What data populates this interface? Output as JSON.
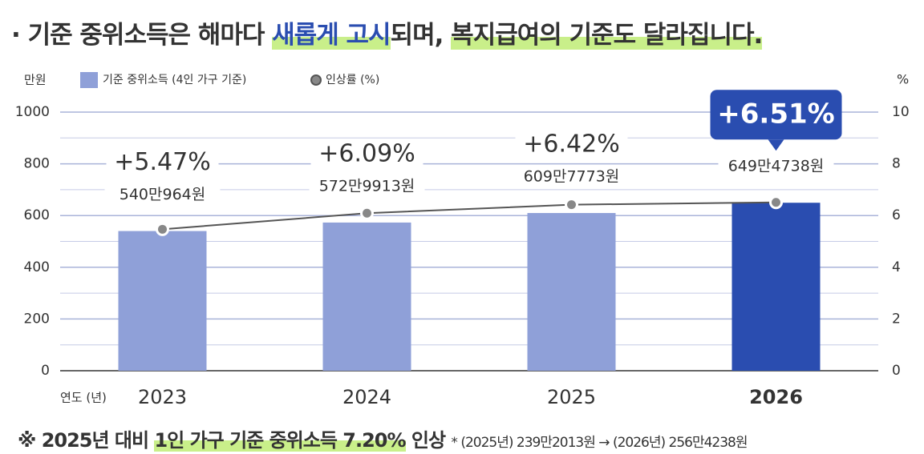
{
  "chart_data": {
    "type": "bar-line",
    "title_parts": [
      "· 기준 중위소득은 해마다 ",
      "새롭게 고시",
      "되며, ",
      "복지급여의 기준도 달라집니다."
    ],
    "y_label": "만원",
    "y2_label": "%",
    "x_label": "연도 (년)",
    "categories": [
      "2023",
      "2024",
      "2025",
      "2026"
    ],
    "series": [
      {
        "name": "기준 중위소득 (4인 가구 기준)",
        "type": "bar",
        "color": "#8fa0d8",
        "colors": [
          "#8fa0d8",
          "#8fa0d8",
          "#8fa0d8",
          "#2a4db0"
        ],
        "values": [
          540.0964,
          572.9913,
          609.7773,
          649.4738
        ],
        "value_labels": [
          "540만964원",
          "572만9913원",
          "609만7773원",
          "649만4738원"
        ]
      },
      {
        "name": "인상률 (%)",
        "type": "line",
        "axis": "y2",
        "color": "#555555",
        "values": [
          5.47,
          6.09,
          6.42,
          6.51
        ],
        "value_labels": [
          "+5.47%",
          "+6.09%",
          "+6.42%",
          "+6.51%"
        ]
      }
    ],
    "ylim": [
      0,
      1000
    ],
    "yticks": [
      0,
      200,
      400,
      600,
      800,
      1000
    ],
    "y2lim": [
      0,
      10
    ],
    "y2ticks": [
      0,
      2,
      4,
      6,
      8,
      10
    ],
    "grid": true,
    "footnote_parts": [
      "※ 2025년 대비 ",
      "1인 가구 기준 중위소득 7.20%",
      " 인상 ",
      "* (2025년) 239만2013원 → (2026년) 256만4238원"
    ]
  }
}
